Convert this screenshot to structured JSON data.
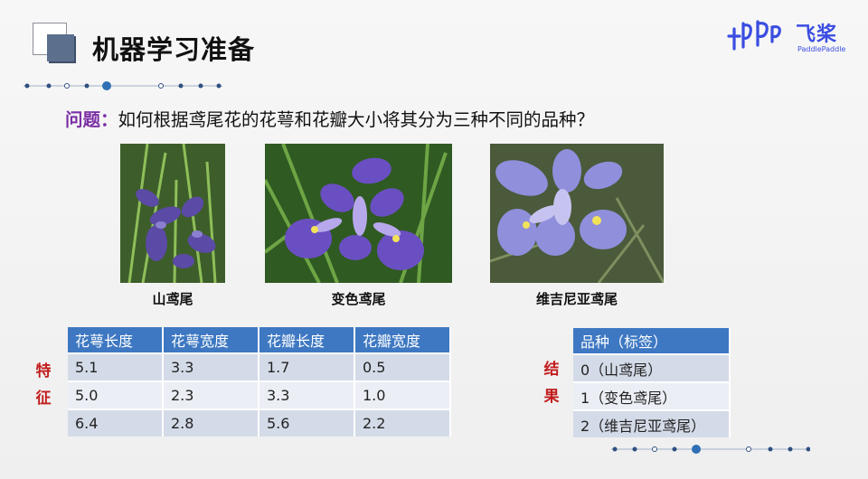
{
  "slide": {
    "title": "机器学习准备",
    "brand": {
      "name": "飞桨",
      "sub": "PaddlePaddle"
    },
    "question_label": "问题：",
    "question_text": "如何根据鸢尾花的花萼和花瓣大小将其分为三种不同的品种？"
  },
  "flowers": [
    {
      "caption": "山鸢尾"
    },
    {
      "caption": "变色鸢尾"
    },
    {
      "caption": "维吉尼亚鸢尾"
    }
  ],
  "features": {
    "side_label": [
      "特",
      "征"
    ],
    "headers": [
      "花萼长度",
      "花萼宽度",
      "花瓣长度",
      "花瓣宽度"
    ],
    "rows": [
      [
        "5.1",
        "3.3",
        "1.7",
        "0.5"
      ],
      [
        "5.0",
        "2.3",
        "3.3",
        "1.0"
      ],
      [
        "6.4",
        "2.8",
        "5.6",
        "2.2"
      ]
    ]
  },
  "results": {
    "side_label": [
      "结",
      "果"
    ],
    "header": "品种（标签）",
    "rows": [
      "0（山鸢尾）",
      "1（变色鸢尾）",
      "2（维吉尼亚鸢尾）"
    ]
  },
  "colors": {
    "accent": "#3e78c2",
    "question_label": "#7b2fa5",
    "side_label": "#c21d1d",
    "brand": "#3a4de0"
  }
}
